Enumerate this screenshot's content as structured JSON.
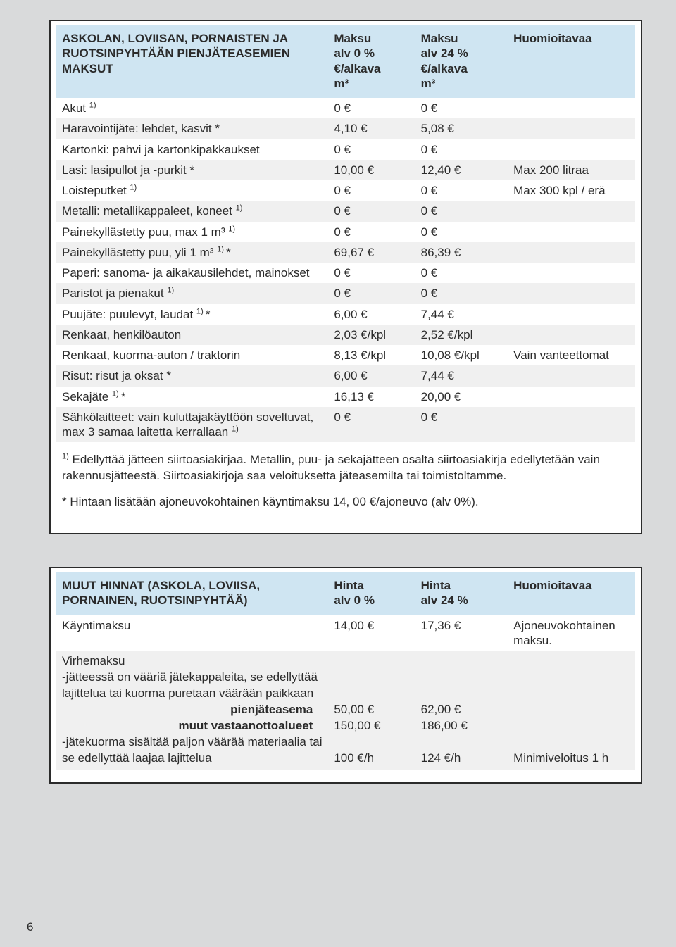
{
  "page_number": "6",
  "table1": {
    "headers": {
      "label": "ASKOLAN, LOVIISAN, PORNAISTEN JA RUOTSINPYHTÄÄN PIENJÄTEASEMIEN MAKSUT",
      "col2_l1": "Maksu",
      "col2_l2": "alv 0 %",
      "col2_l3": "€/alkava",
      "col2_l4": "m³",
      "col3_l1": "Maksu",
      "col3_l2": "alv 24 %",
      "col3_l3": "€/alkava",
      "col3_l4": "m³",
      "col4": "Huomioitavaa"
    },
    "rows": [
      {
        "label": "Akut ",
        "sup": "1)",
        "v1": "0 €",
        "v2": "0 €",
        "note": ""
      },
      {
        "label": "Haravointijäte: lehdet, kasvit *",
        "sup": "",
        "v1": "4,10 €",
        "v2": "5,08 €",
        "note": ""
      },
      {
        "label": "Kartonki: pahvi ja kartonkipakkaukset",
        "sup": "",
        "v1": "0 €",
        "v2": "0 €",
        "note": ""
      },
      {
        "label": "Lasi: lasipullot ja -purkit *",
        "sup": "",
        "v1": "10,00 €",
        "v2": "12,40 €",
        "note": "Max 200 litraa"
      },
      {
        "label": "Loisteputket ",
        "sup": "1)",
        "v1": "0 €",
        "v2": "0 €",
        "note": "Max 300 kpl / erä"
      },
      {
        "label": "Metalli: metallikappaleet, koneet ",
        "sup": "1)",
        "v1": "0 €",
        "v2": "0 €",
        "note": ""
      },
      {
        "label": "Painekyllästetty puu, max 1 m³ ",
        "sup": "1)",
        "v1": "0 €",
        "v2": "0 €",
        "note": ""
      },
      {
        "label": "Painekyllästetty puu, yli 1 m³ ",
        "sup": "1) ",
        "suffix": "*",
        "v1": "69,67 €",
        "v2": "86,39 €",
        "note": ""
      },
      {
        "label": "Paperi: sanoma- ja aikakausilehdet, mainokset",
        "sup": "",
        "v1": "0 €",
        "v2": "0 €",
        "note": ""
      },
      {
        "label": "Paristot ja pienakut ",
        "sup": "1)",
        "v1": "0 €",
        "v2": "0 €",
        "note": ""
      },
      {
        "label": "Puujäte: puulevyt, laudat ",
        "sup": "1) ",
        "suffix": "*",
        "v1": "6,00 €",
        "v2": "7,44 €",
        "note": ""
      },
      {
        "label": "Renkaat, henkilöauton",
        "sup": "",
        "v1": "2,03 €/kpl",
        "v2": "2,52 €/kpl",
        "note": ""
      },
      {
        "label": "Renkaat, kuorma-auton / traktorin",
        "sup": "",
        "v1": "8,13 €/kpl",
        "v2": "10,08 €/kpl",
        "note": "Vain vanteettomat"
      },
      {
        "label": "Risut: risut ja oksat *",
        "sup": "",
        "v1": "6,00 €",
        "v2": "7,44 €",
        "note": ""
      },
      {
        "label": "Sekajäte ",
        "sup": "1) ",
        "suffix": "*",
        "v1": "16,13 €",
        "v2": "20,00 €",
        "note": ""
      },
      {
        "label": "Sähkölaitteet: vain kuluttajakäyttöön soveltuvat, max 3 samaa laitetta kerrallaan ",
        "sup": "1)",
        "v1": "0 €",
        "v2": "0 €",
        "note": ""
      }
    ],
    "footnote1_pre": "1)",
    "footnote1": " Edellyttää jätteen siirtoasiakirjaa. Metallin, puu- ja sekajätteen osalta siirtoasiakirja edellytetään vain rakennusjätteestä. Siirtoasiakirjoja saa veloituksetta jäteasemilta tai toimistoltamme.",
    "footnote2": "* Hintaan lisätään ajoneuvokohtainen käyntimaksu 14, 00 €/ajoneuvo (alv 0%)."
  },
  "table2": {
    "headers": {
      "label": "MUUT HINNAT (ASKOLA, LOVIISA, PORNAINEN, RUOTSINPYHTÄÄ)",
      "col2_l1": "Hinta",
      "col2_l2": "alv 0 %",
      "col3_l1": "Hinta",
      "col3_l2": "alv 24 %",
      "col4": "Huomioitavaa"
    },
    "row1": {
      "label": "Käyntimaksu",
      "v1": "14,00 €",
      "v2": "17,36 €",
      "note": "Ajoneuvokohtainen maksu."
    },
    "row2": {
      "title": "Virhemaksu",
      "line1": "-jätteessä on vääriä jätekappaleita, se edellyttää lajittelua tai kuorma puretaan väärään paikkaan",
      "sub1": "pienjäteasema",
      "sub2": "muut vastaanottoalueet",
      "line3": "-jätekuorma sisältää paljon väärää materiaalia tai se edellyttää laajaa lajittelua",
      "v1a": "50,00 €",
      "v2a": "62,00 €",
      "v1b": "150,00 €",
      "v2b": "186,00 €",
      "v1c": "100 €/h",
      "v2c": "124 €/h",
      "note_c": "Minimiveloitus 1 h"
    }
  },
  "colors": {
    "page_bg": "#d9dadb",
    "header_bg": "#cfe5f2",
    "row_alt_bg": "#f0f0f0",
    "border": "#2b2b2b"
  }
}
